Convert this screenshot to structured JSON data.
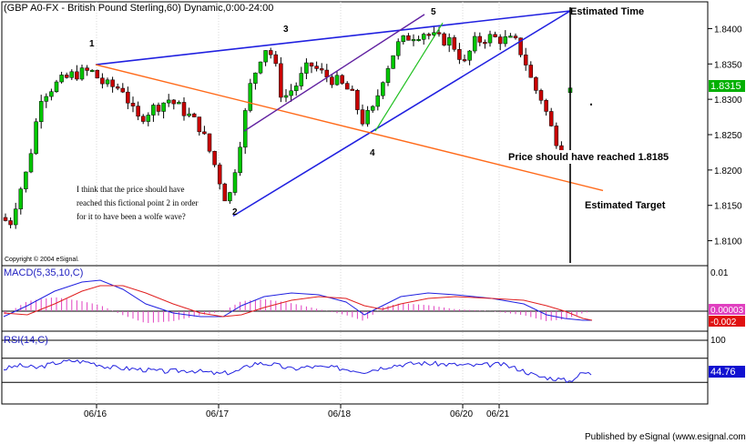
{
  "chart_data": [
    {
      "type": "candlestick",
      "title": "(GBP A0-FX - British Pound Sterling,60) Dynamic,0:00-24:00",
      "x_tick_labels": [
        "06/16",
        "06/17",
        "06/18",
        "06/20",
        "06/21"
      ],
      "y_ticks": [
        1.81,
        1.815,
        1.82,
        1.825,
        1.83,
        1.835,
        1.84
      ],
      "y_tick_labels": [
        "1.8100",
        "1.8150",
        "1.8200",
        "1.8250",
        "1.8300",
        "1.8350",
        "1.8400"
      ],
      "ylim": [
        1.8075,
        1.8425
      ],
      "last_price": 1.8315,
      "last_price_label": "1.8315",
      "wave_point_labels": [
        "1",
        "2",
        "3",
        "4",
        "5"
      ],
      "annotations": {
        "estimated_time": "Estimated Time",
        "estimated_target": "Estimated Target",
        "price_note": "Price should have reached 1.8185",
        "comment_lines": [
          "I think that the price should have",
          "reached this fictional point 2 in order",
          "for it to have been a wolfe wave?"
        ]
      },
      "copyright": "Copyright © 2004 eSignal.",
      "legend": "none",
      "colors": {
        "bull": "#00c800",
        "bear": "#c80000",
        "wave_lines": "#2020e0",
        "target_line": "#ff6a1a",
        "channel_line": "#6020a0",
        "acceleration_line": "#20c020"
      }
    },
    {
      "type": "line",
      "title": "MACD(5,35,10,C)",
      "y_tick_labels": [
        "0.01"
      ],
      "ylim": [
        -0.01,
        0.01
      ],
      "value_labels": [
        "0.00003",
        "-0.002"
      ],
      "series": [
        {
          "name": "MACD",
          "color": "#2020e0"
        },
        {
          "name": "Signal",
          "color": "#e02020"
        },
        {
          "name": "Histogram",
          "color": "#e040c0"
        }
      ]
    },
    {
      "type": "line",
      "title": "RSI(14,C)",
      "y_tick_labels": [
        "100"
      ],
      "ylim": [
        0,
        100
      ],
      "guide_levels": [
        30,
        70
      ],
      "last_value_label": "44.76",
      "series": [
        {
          "name": "RSI",
          "color": "#2020e0"
        }
      ]
    }
  ],
  "footer": {
    "published_by": "Published by eSignal (www.esignal.com)"
  }
}
